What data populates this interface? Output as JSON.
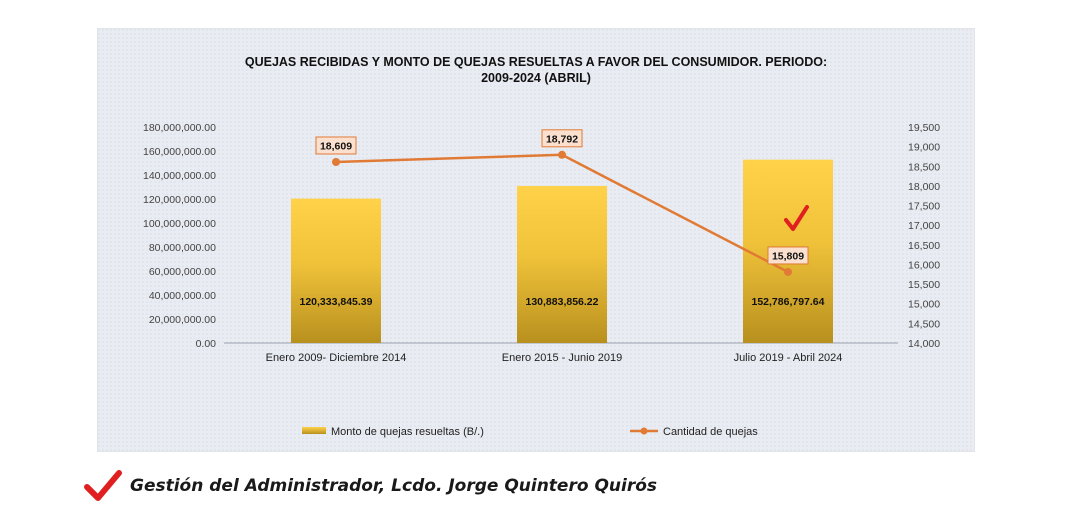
{
  "chart_data": {
    "type": "bar",
    "title_line1": "QUEJAS RECIBIDAS Y MONTO DE QUEJAS RESUELTAS A FAVOR DEL CONSUMIDOR. PERIODO:",
    "title_line2": "2009-2024 (ABRIL)",
    "categories": [
      "Enero 2009- Diciembre 2014",
      "Enero 2015 - Junio 2019",
      "Julio 2019 - Abril 2024"
    ],
    "series": [
      {
        "name": "Monto de quejas resueltas (B/.)",
        "type": "bar",
        "axis": "left",
        "values": [
          120333845.39,
          130883856.22,
          152786797.64
        ],
        "labels": [
          "120,333,845.39",
          "130,883,856.22",
          "152,786,797.64"
        ]
      },
      {
        "name": "Cantidad de quejas",
        "type": "line",
        "axis": "right",
        "values": [
          18609,
          18792,
          15809
        ],
        "labels": [
          "18,609",
          "18,792",
          "15,809"
        ]
      }
    ],
    "y_left": {
      "min": 0,
      "max": 180000000,
      "step": 20000000,
      "ticks": [
        "0.00",
        "20,000,000.00",
        "40,000,000.00",
        "60,000,000.00",
        "80,000,000.00",
        "100,000,000.00",
        "120,000,000.00",
        "140,000,000.00",
        "160,000,000.00",
        "180,000,000.00"
      ]
    },
    "y_right": {
      "min": 14000,
      "max": 19500,
      "step": 500,
      "ticks": [
        "14,000",
        "14,500",
        "15,000",
        "15,500",
        "16,000",
        "16,500",
        "17,000",
        "17,500",
        "18,000",
        "18,500",
        "19,000",
        "19,500"
      ]
    },
    "legend_position": "bottom",
    "colors": {
      "bar_top": "#ffd24a",
      "bar_bottom": "#b8901e",
      "line": "#e07a35",
      "label_bg": "#fbe0cf",
      "label_border": "#e07a35",
      "checkmark": "#e02020"
    },
    "grid": false
  },
  "footer": {
    "text": "Gestión del Administrador, Lcdo. Jorge Quintero Quirós",
    "icon": "checkmark-icon"
  }
}
